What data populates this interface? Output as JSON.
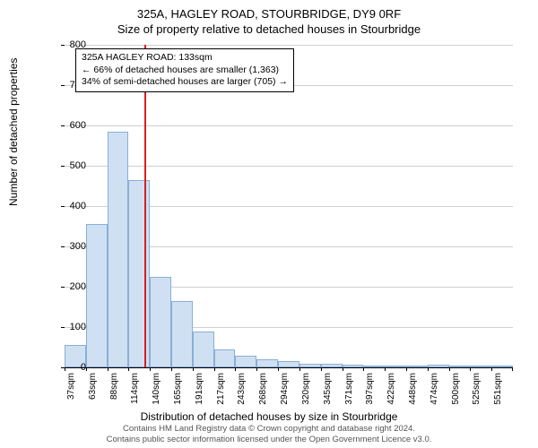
{
  "titles": {
    "line1": "325A, HAGLEY ROAD, STOURBRIDGE, DY9 0RF",
    "line2": "Size of property relative to detached houses in Stourbridge"
  },
  "ylabel": "Number of detached properties",
  "xlabel": "Distribution of detached houses by size in Stourbridge",
  "footer": {
    "line1": "Contains HM Land Registry data © Crown copyright and database right 2024.",
    "line2": "Contains public sector information licensed under the Open Government Licence v3.0."
  },
  "chart": {
    "type": "histogram",
    "ylim": [
      0,
      800
    ],
    "ytick_step": 100,
    "yticks": [
      0,
      100,
      200,
      300,
      400,
      500,
      600,
      700,
      800
    ],
    "bar_fill": "#cfe0f3",
    "bar_stroke": "#8aaed6",
    "grid_color": "#d0d0d0",
    "background_color": "#ffffff",
    "refline_color": "#d62020",
    "refline_x": 133,
    "x_start": 37,
    "x_step": 25.7,
    "categories": [
      "37sqm",
      "63sqm",
      "88sqm",
      "114sqm",
      "140sqm",
      "165sqm",
      "191sqm",
      "217sqm",
      "243sqm",
      "268sqm",
      "294sqm",
      "320sqm",
      "345sqm",
      "371sqm",
      "397sqm",
      "422sqm",
      "448sqm",
      "474sqm",
      "500sqm",
      "525sqm",
      "551sqm"
    ],
    "values": [
      55,
      355,
      585,
      465,
      225,
      165,
      90,
      45,
      28,
      20,
      15,
      10,
      8,
      6,
      5,
      5,
      3,
      7,
      2,
      2,
      2
    ]
  },
  "info_box": {
    "line1": "325A HAGLEY ROAD: 133sqm",
    "line2": "← 66% of detached houses are smaller (1,363)",
    "line3": "34% of semi-detached houses are larger (705) →"
  }
}
